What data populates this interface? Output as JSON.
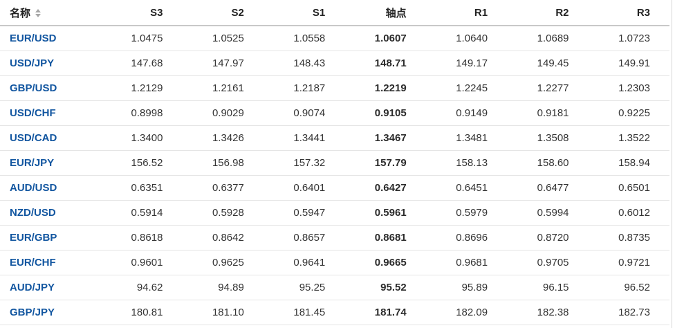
{
  "table": {
    "columns": [
      {
        "key": "name",
        "label": "名称",
        "sortable": true
      },
      {
        "key": "s3",
        "label": "S3",
        "sortable": false
      },
      {
        "key": "s2",
        "label": "S2",
        "sortable": false
      },
      {
        "key": "s1",
        "label": "S1",
        "sortable": false
      },
      {
        "key": "pivot",
        "label": "轴点",
        "sortable": false
      },
      {
        "key": "r1",
        "label": "R1",
        "sortable": false
      },
      {
        "key": "r2",
        "label": "R2",
        "sortable": false
      },
      {
        "key": "r3",
        "label": "R3",
        "sortable": false
      }
    ],
    "rows": [
      {
        "name": "EUR/USD",
        "s3": "1.0475",
        "s2": "1.0525",
        "s1": "1.0558",
        "pivot": "1.0607",
        "r1": "1.0640",
        "r2": "1.0689",
        "r3": "1.0723"
      },
      {
        "name": "USD/JPY",
        "s3": "147.68",
        "s2": "147.97",
        "s1": "148.43",
        "pivot": "148.71",
        "r1": "149.17",
        "r2": "149.45",
        "r3": "149.91"
      },
      {
        "name": "GBP/USD",
        "s3": "1.2129",
        "s2": "1.2161",
        "s1": "1.2187",
        "pivot": "1.2219",
        "r1": "1.2245",
        "r2": "1.2277",
        "r3": "1.2303"
      },
      {
        "name": "USD/CHF",
        "s3": "0.8998",
        "s2": "0.9029",
        "s1": "0.9074",
        "pivot": "0.9105",
        "r1": "0.9149",
        "r2": "0.9181",
        "r3": "0.9225"
      },
      {
        "name": "USD/CAD",
        "s3": "1.3400",
        "s2": "1.3426",
        "s1": "1.3441",
        "pivot": "1.3467",
        "r1": "1.3481",
        "r2": "1.3508",
        "r3": "1.3522"
      },
      {
        "name": "EUR/JPY",
        "s3": "156.52",
        "s2": "156.98",
        "s1": "157.32",
        "pivot": "157.79",
        "r1": "158.13",
        "r2": "158.60",
        "r3": "158.94"
      },
      {
        "name": "AUD/USD",
        "s3": "0.6351",
        "s2": "0.6377",
        "s1": "0.6401",
        "pivot": "0.6427",
        "r1": "0.6451",
        "r2": "0.6477",
        "r3": "0.6501"
      },
      {
        "name": "NZD/USD",
        "s3": "0.5914",
        "s2": "0.5928",
        "s1": "0.5947",
        "pivot": "0.5961",
        "r1": "0.5979",
        "r2": "0.5994",
        "r3": "0.6012"
      },
      {
        "name": "EUR/GBP",
        "s3": "0.8618",
        "s2": "0.8642",
        "s1": "0.8657",
        "pivot": "0.8681",
        "r1": "0.8696",
        "r2": "0.8720",
        "r3": "0.8735"
      },
      {
        "name": "EUR/CHF",
        "s3": "0.9601",
        "s2": "0.9625",
        "s1": "0.9641",
        "pivot": "0.9665",
        "r1": "0.9681",
        "r2": "0.9705",
        "r3": "0.9721"
      },
      {
        "name": "AUD/JPY",
        "s3": "94.62",
        "s2": "94.89",
        "s1": "95.25",
        "pivot": "95.52",
        "r1": "95.89",
        "r2": "96.15",
        "r3": "96.52"
      },
      {
        "name": "GBP/JPY",
        "s3": "180.81",
        "s2": "181.10",
        "s1": "181.45",
        "pivot": "181.74",
        "r1": "182.09",
        "r2": "182.38",
        "r3": "182.73"
      }
    ]
  },
  "icons": {
    "name_sort": "sort-arrows-icon"
  },
  "colors": {
    "pair_link": "#1256a0",
    "value_text": "#333333",
    "header_text": "#222222",
    "pivot_text": "#2b2b2b",
    "header_border": "#c8c8c8",
    "row_border": "#e5e5e5",
    "sort_icon": "#a6a6a6",
    "background": "#ffffff"
  }
}
